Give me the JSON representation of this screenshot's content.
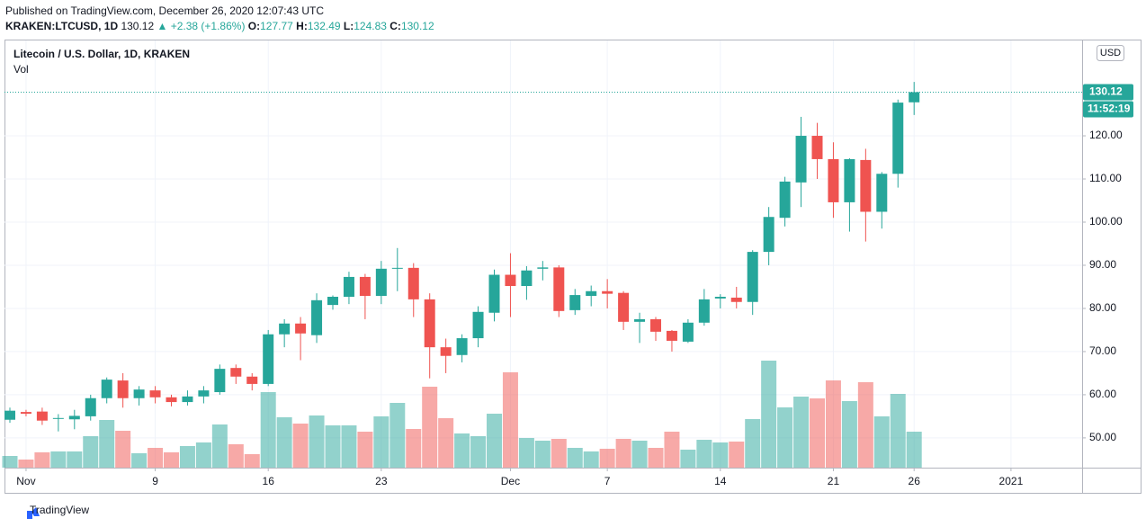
{
  "header": {
    "published": "Published on TradingView.com, December 26, 2020 12:07:43 UTC",
    "symbol": "KRAKEN:LTCUSD, 1D",
    "change": "▲ +2.38 (+1.86%)",
    "o": "O:",
    "h": "H:",
    "l": "L:",
    "c": "C:"
  },
  "footer": {
    "brand": "TradingView"
  },
  "chart_data": {
    "type": "candlestick",
    "title": "Litecoin / U.S. Dollar, 1D, KRAKEN",
    "volume_label": "Vol",
    "currency": "USD",
    "countdown": "11:52:19",
    "up_color": "#26a69a",
    "down_color": "#ef5350",
    "x": [
      "2020-10-31",
      "2020-11-01",
      "2020-11-02",
      "2020-11-03",
      "2020-11-04",
      "2020-11-05",
      "2020-11-06",
      "2020-11-07",
      "2020-11-08",
      "2020-11-09",
      "2020-11-10",
      "2020-11-11",
      "2020-11-12",
      "2020-11-13",
      "2020-11-14",
      "2020-11-15",
      "2020-11-16",
      "2020-11-17",
      "2020-11-18",
      "2020-11-19",
      "2020-11-20",
      "2020-11-21",
      "2020-11-22",
      "2020-11-23",
      "2020-11-24",
      "2020-11-25",
      "2020-11-26",
      "2020-11-27",
      "2020-11-28",
      "2020-11-29",
      "2020-11-30",
      "2020-12-01",
      "2020-12-02",
      "2020-12-03",
      "2020-12-04",
      "2020-12-05",
      "2020-12-06",
      "2020-12-07",
      "2020-12-08",
      "2020-12-09",
      "2020-12-10",
      "2020-12-11",
      "2020-12-12",
      "2020-12-13",
      "2020-12-14",
      "2020-12-15",
      "2020-12-16",
      "2020-12-17",
      "2020-12-18",
      "2020-12-19",
      "2020-12-20",
      "2020-12-21",
      "2020-12-22",
      "2020-12-23",
      "2020-12-24",
      "2020-12-25",
      "2020-12-26"
    ],
    "open": [
      54.2,
      56.0,
      56.1,
      54.5,
      54.3,
      55.0,
      59.2,
      63.3,
      59.2,
      61.0,
      59.4,
      58.3,
      59.6,
      60.6,
      66.2,
      64.2,
      62.5,
      74.0,
      76.5,
      73.8,
      80.8,
      82.7,
      87.3,
      82.9,
      89.2,
      89.4,
      82.1,
      71.0,
      69.2,
      73.1,
      79.0,
      87.8,
      85.2,
      89.2,
      89.5,
      79.6,
      82.9,
      84.0,
      83.6,
      76.9,
      77.5,
      74.8,
      72.3,
      76.7,
      82.3,
      82.5,
      81.5,
      93.1,
      101.0,
      109.2,
      120.0,
      114.6,
      104.6,
      114.4,
      102.4,
      111.2,
      127.77
    ],
    "high": [
      57.0,
      56.5,
      57.0,
      55.5,
      56.5,
      60.0,
      64.0,
      65.0,
      62.0,
      62.0,
      60.0,
      61.0,
      62.0,
      67.0,
      67.0,
      65.0,
      75.0,
      77.5,
      78.0,
      83.5,
      83.0,
      88.5,
      88.0,
      91.0,
      94.0,
      90.5,
      83.5,
      73.0,
      74.0,
      80.5,
      89.0,
      92.8,
      89.8,
      91.0,
      90.0,
      84.5,
      85.3,
      86.8,
      84.0,
      79.0,
      78.0,
      75.0,
      77.5,
      84.5,
      83.3,
      85.0,
      93.5,
      103.5,
      110.5,
      124.4,
      123.0,
      118.5,
      114.8,
      117.0,
      111.6,
      128.4,
      132.49
    ],
    "low": [
      53.5,
      55.0,
      53.0,
      51.5,
      52.0,
      54.0,
      58.0,
      57.0,
      57.5,
      58.0,
      57.3,
      57.5,
      58.0,
      60.0,
      62.5,
      61.0,
      62.0,
      71.0,
      68.0,
      72.0,
      79.7,
      81.0,
      77.5,
      81.0,
      84.0,
      78.0,
      63.8,
      65.0,
      67.5,
      71.0,
      77.0,
      78.0,
      82.0,
      86.5,
      78.0,
      78.5,
      80.5,
      80.0,
      75.0,
      72.0,
      72.5,
      70.0,
      72.0,
      76.0,
      80.0,
      80.0,
      78.5,
      90.0,
      99.0,
      103.5,
      110.0,
      101.0,
      97.8,
      95.5,
      98.5,
      108.0,
      124.83
    ],
    "close": [
      56.3,
      55.6,
      54.0,
      54.6,
      55.1,
      59.2,
      63.5,
      59.2,
      61.2,
      59.4,
      58.3,
      59.6,
      61.0,
      66.0,
      64.2,
      62.5,
      74.0,
      76.5,
      74.2,
      81.9,
      82.7,
      87.3,
      82.9,
      89.2,
      89.4,
      82.1,
      71.0,
      69.0,
      73.1,
      79.2,
      87.8,
      85.2,
      88.8,
      89.5,
      79.4,
      83.1,
      84.0,
      83.4,
      76.9,
      77.5,
      74.6,
      72.5,
      76.7,
      82.1,
      82.7,
      81.5,
      93.1,
      101.2,
      109.4,
      120.0,
      114.6,
      104.6,
      114.6,
      102.4,
      111.2,
      127.7,
      130.12
    ],
    "volume": [
      13,
      9,
      17,
      18,
      18,
      35,
      53,
      41,
      16,
      22,
      17,
      24,
      28,
      48,
      26,
      15,
      84,
      56,
      49,
      58,
      47,
      47,
      40,
      57,
      72,
      43,
      90,
      55,
      38,
      35,
      60,
      106,
      33,
      30,
      32,
      22,
      18,
      21,
      32,
      30,
      22,
      40,
      20,
      31,
      28,
      29,
      54,
      119,
      67,
      79,
      77,
      97,
      74,
      95,
      57,
      82,
      40
    ],
    "volume_ylim": [
      0,
      475
    ],
    "ylim": [
      43.1,
      142.1
    ],
    "yticks": [
      {
        "value": 50,
        "label": "50.00"
      },
      {
        "value": 60,
        "label": "60.00"
      },
      {
        "value": 70,
        "label": "70.00"
      },
      {
        "value": 80,
        "label": "80.00"
      },
      {
        "value": 90,
        "label": "90.00"
      },
      {
        "value": 100,
        "label": "100.00"
      },
      {
        "value": 110,
        "label": "110.00"
      },
      {
        "value": 120,
        "label": "120.00"
      }
    ],
    "xticks": [
      {
        "value": "2020-11-01",
        "label": "Nov"
      },
      {
        "value": "2020-11-09",
        "label": "9"
      },
      {
        "value": "2020-11-16",
        "label": "16"
      },
      {
        "value": "2020-11-23",
        "label": "23"
      },
      {
        "value": "2020-12-01",
        "label": "Dec"
      },
      {
        "value": "2020-12-07",
        "label": "7"
      },
      {
        "value": "2020-12-14",
        "label": "14"
      },
      {
        "value": "2020-12-21",
        "label": "21"
      },
      {
        "value": "2020-12-26",
        "label": "26"
      },
      {
        "value": "2021-01-01",
        "label": "2021"
      }
    ],
    "grid": true
  }
}
